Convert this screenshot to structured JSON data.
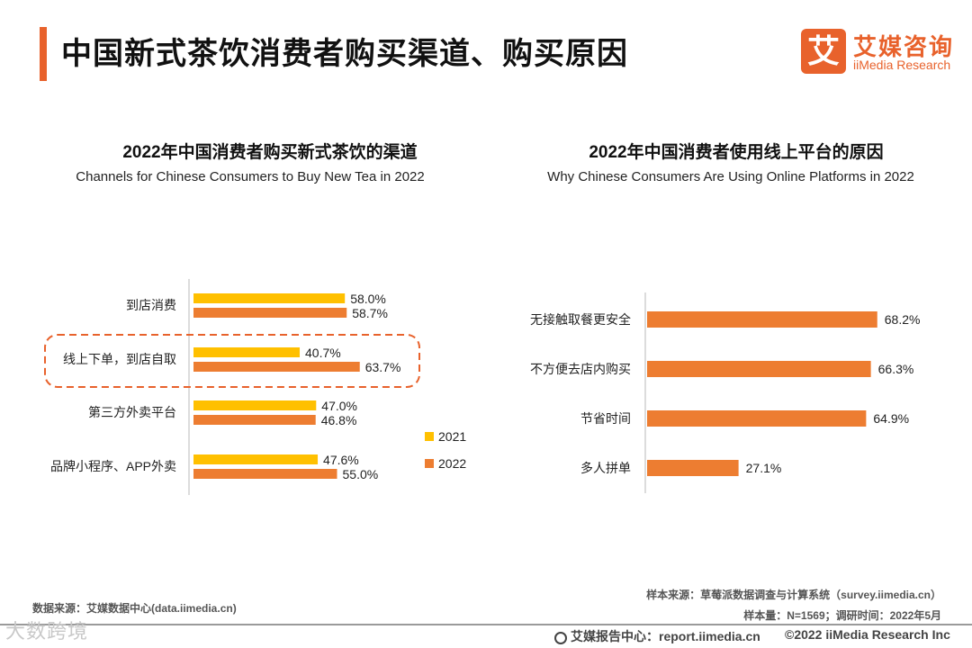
{
  "header": {
    "title": "中国新式茶饮消费者购买渠道、购买原因",
    "logo_mark": "艾",
    "logo_cn": "艾媒咨询",
    "logo_en": "iiMedia Research"
  },
  "colors": {
    "accent": "#e8622c",
    "series2021": "#ffc000",
    "series2022": "#ed7d31",
    "highlight_border": "#e8622c"
  },
  "chart_data": [
    {
      "type": "bar",
      "orientation": "horizontal",
      "title": "2022年中国消费者购买新式茶饮的渠道",
      "subtitle": "Channels for Chinese Consumers to Buy New Tea in 2022",
      "categories": [
        "到店消费",
        "线上下单，到店自取",
        "第三方外卖平台",
        "品牌小程序、APP外卖"
      ],
      "series": [
        {
          "name": "2021",
          "values": [
            58.0,
            40.7,
            47.0,
            47.6
          ],
          "labels": [
            "58.0%",
            "40.7%",
            "47.0%",
            "47.6%"
          ]
        },
        {
          "name": "2022",
          "values": [
            58.7,
            63.7,
            46.8,
            55.0
          ],
          "labels": [
            "58.7%",
            "63.7%",
            "46.8%",
            "55.0%"
          ]
        }
      ],
      "highlighted_category": "线上下单，到店自取",
      "legend_position": "bottom-right",
      "xlim": [
        0,
        100
      ]
    },
    {
      "type": "bar",
      "orientation": "horizontal",
      "title": "2022年中国消费者使用线上平台的原因",
      "subtitle": "Why Chinese Consumers Are Using Online Platforms in 2022",
      "categories": [
        "无接触取餐更安全",
        "不方便去店内购买",
        "节省时间",
        "多人拼单"
      ],
      "values": [
        68.2,
        66.3,
        64.9,
        27.1
      ],
      "labels": [
        "68.2%",
        "66.3%",
        "64.9%",
        "27.1%"
      ],
      "xlim": [
        0,
        100
      ]
    }
  ],
  "footer": {
    "source_left": "数据来源：艾媒数据中心(data.iimedia.cn)",
    "sample_source": "样本来源：草莓派数据调查与计算系统（survey.iimedia.cn）",
    "sample_info": "样本量：N=1569；调研时间：2022年5月",
    "report_center": "艾媒报告中心：report.iimedia.cn",
    "copyright": "©2022  iiMedia Research  Inc",
    "watermark": "大数跨境"
  }
}
